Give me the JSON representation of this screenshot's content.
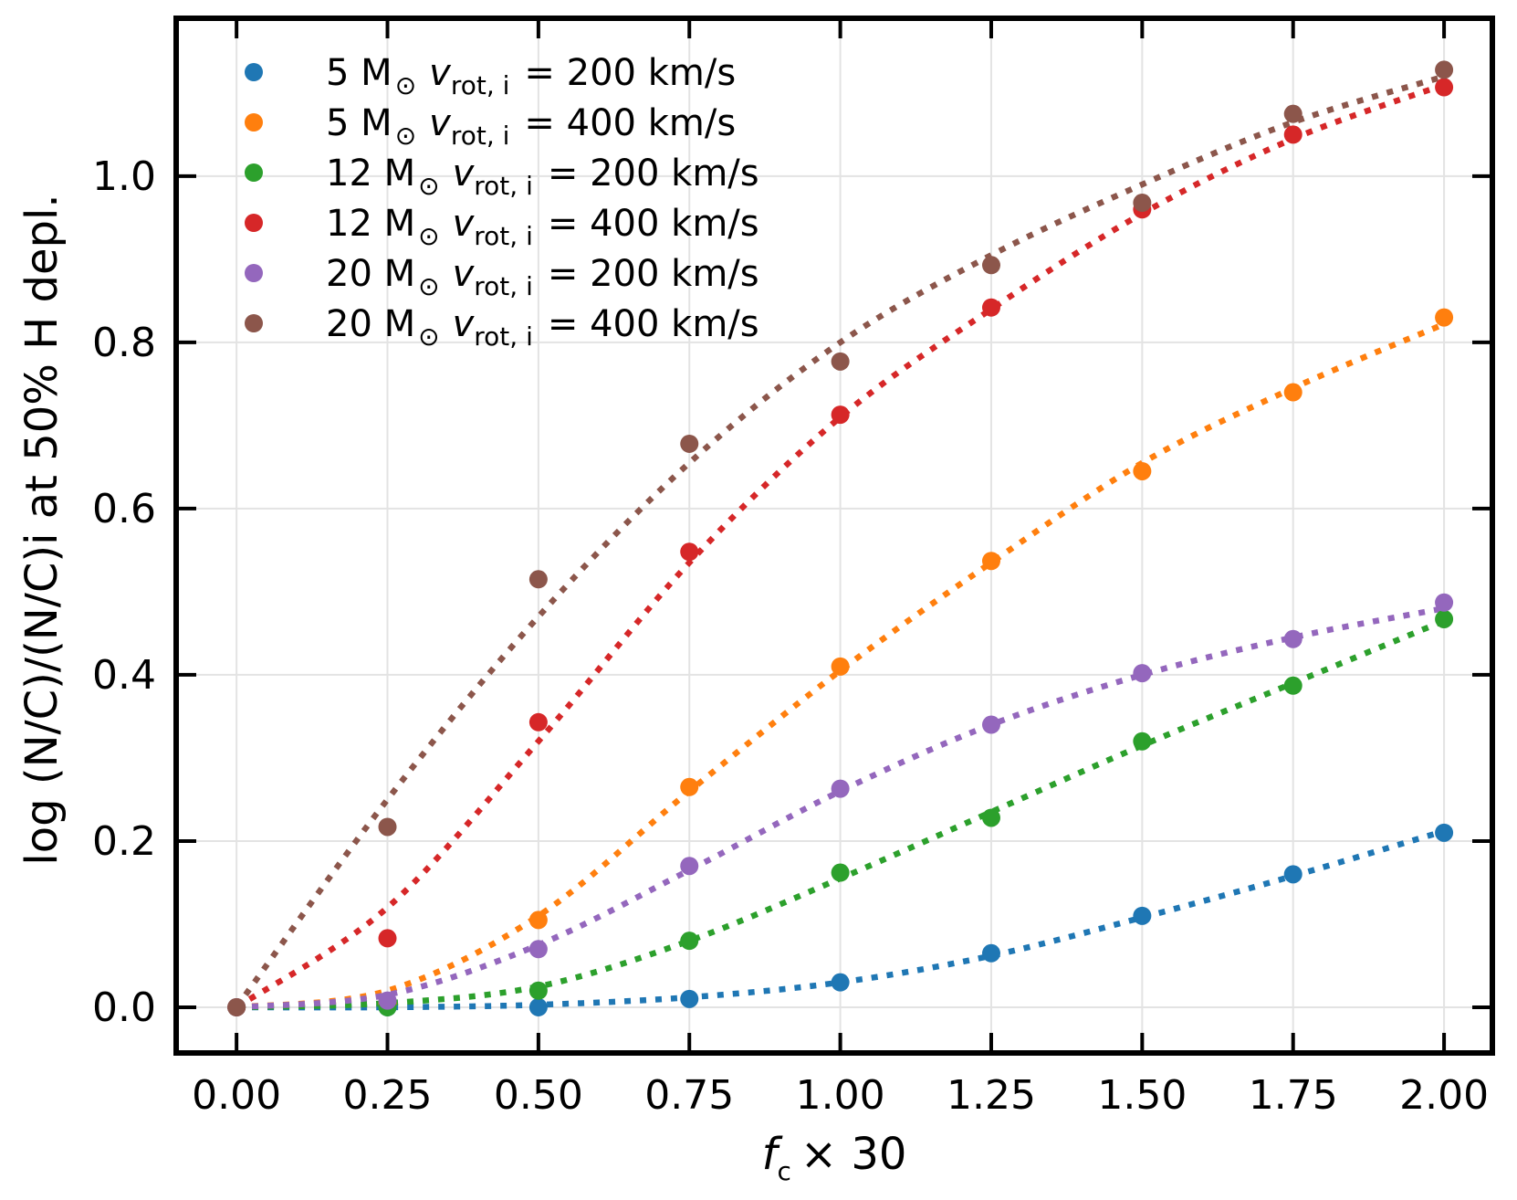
{
  "chart_data": {
    "type": "scatter",
    "xlabel": {
      "base": "f",
      "sub": "c",
      "suffix": "× 30"
    },
    "ylabel": "log (N/C)/(N/C)i at 50% H depl.",
    "xlim": [
      -0.1,
      2.08
    ],
    "ylim": [
      -0.055,
      1.19
    ],
    "xticks": [
      0.0,
      0.25,
      0.5,
      0.75,
      1.0,
      1.25,
      1.5,
      1.75,
      2.0
    ],
    "xtick_labels": [
      "0.00",
      "0.25",
      "0.50",
      "0.75",
      "1.00",
      "1.25",
      "1.50",
      "1.75",
      "2.00"
    ],
    "yticks": [
      0.0,
      0.2,
      0.4,
      0.6,
      0.8,
      1.0
    ],
    "ytick_labels": [
      "0.0",
      "0.2",
      "0.4",
      "0.6",
      "0.8",
      "1.0"
    ],
    "grid": true,
    "legend_position": "top-left",
    "x": [
      0.0,
      0.25,
      0.5,
      0.75,
      1.0,
      1.25,
      1.5,
      1.75,
      2.0
    ],
    "series": [
      {
        "name": "5 M⊙ vrot,i = 200 km/s",
        "mass": "5",
        "velocity": "200",
        "color": "#1f77b4",
        "values": [
          0.0,
          0.0,
          0.0,
          0.01,
          0.03,
          0.065,
          0.11,
          0.16,
          0.21
        ],
        "fit": [
          0.0,
          0.0,
          0.003,
          0.012,
          0.03,
          0.062,
          0.108,
          0.158,
          0.212
        ]
      },
      {
        "name": "5 M⊙ vrot,i = 400 km/s",
        "mass": "5",
        "velocity": "400",
        "color": "#ff7f0e",
        "values": [
          0.0,
          0.005,
          0.105,
          0.265,
          0.41,
          0.537,
          0.645,
          0.74,
          0.83
        ],
        "fit": [
          0.0,
          0.02,
          0.11,
          0.26,
          0.405,
          0.535,
          0.655,
          0.745,
          0.822
        ]
      },
      {
        "name": "12 M⊙ vrot,i = 200 km/s",
        "mass": "12",
        "velocity": "200",
        "color": "#2ca02c",
        "values": [
          0.0,
          0.0,
          0.02,
          0.08,
          0.162,
          0.228,
          0.32,
          0.387,
          0.467
        ],
        "fit": [
          0.0,
          0.005,
          0.025,
          0.08,
          0.155,
          0.235,
          0.315,
          0.39,
          0.465
        ]
      },
      {
        "name": "12 M⊙ vrot,i = 400 km/s",
        "mass": "12",
        "velocity": "400",
        "color": "#d62728",
        "values": [
          0.0,
          0.083,
          0.343,
          0.548,
          0.713,
          0.842,
          0.96,
          1.05,
          1.107
        ],
        "fit": [
          0.0,
          0.12,
          0.32,
          0.535,
          0.71,
          0.84,
          0.955,
          1.045,
          1.11
        ]
      },
      {
        "name": "20 M⊙ vrot,i = 200 km/s",
        "mass": "20",
        "velocity": "200",
        "color": "#9467bd",
        "values": [
          0.0,
          0.008,
          0.07,
          0.17,
          0.263,
          0.34,
          0.402,
          0.443,
          0.487
        ],
        "fit": [
          0.0,
          0.015,
          0.075,
          0.165,
          0.26,
          0.34,
          0.4,
          0.445,
          0.48
        ]
      },
      {
        "name": "20 M⊙ vrot,i = 400 km/s",
        "mass": "20",
        "velocity": "400",
        "color": "#8c564b",
        "values": [
          0.0,
          0.217,
          0.515,
          0.678,
          0.777,
          0.893,
          0.968,
          1.075,
          1.128
        ],
        "fit": [
          0.0,
          0.25,
          0.47,
          0.655,
          0.8,
          0.905,
          0.99,
          1.065,
          1.12
        ]
      }
    ]
  }
}
